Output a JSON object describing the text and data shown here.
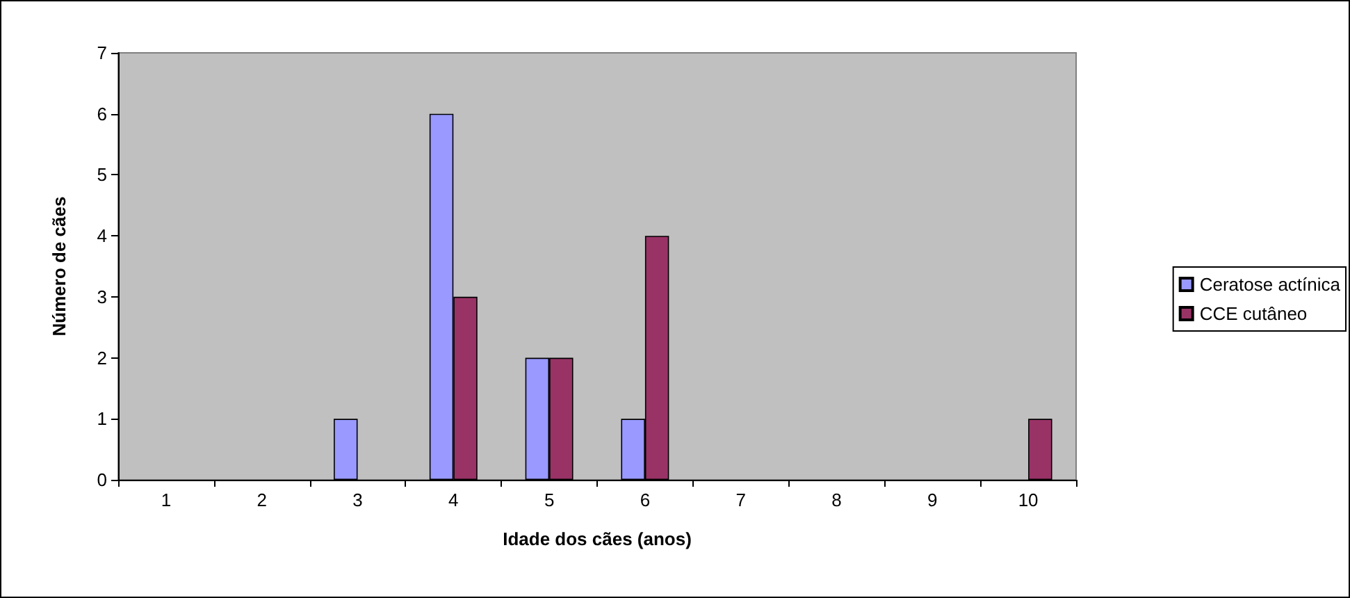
{
  "chart_data": {
    "type": "bar",
    "xlabel": "Idade dos cães (anos)",
    "ylabel": "Número de cães",
    "categories": [
      "1",
      "2",
      "3",
      "4",
      "5",
      "6",
      "7",
      "8",
      "9",
      "10"
    ],
    "series": [
      {
        "name": "Ceratose actínica",
        "color": "#9999ff",
        "values": [
          0,
          0,
          1,
          6,
          2,
          1,
          0,
          0,
          0,
          0
        ]
      },
      {
        "name": "CCE cutâneo",
        "color": "#993366",
        "values": [
          0,
          0,
          0,
          3,
          2,
          4,
          0,
          0,
          0,
          1
        ]
      }
    ],
    "ylim": [
      0,
      7
    ],
    "yticks": [
      0,
      1,
      2,
      3,
      4,
      5,
      6,
      7
    ],
    "grid": false,
    "legend": "right"
  }
}
